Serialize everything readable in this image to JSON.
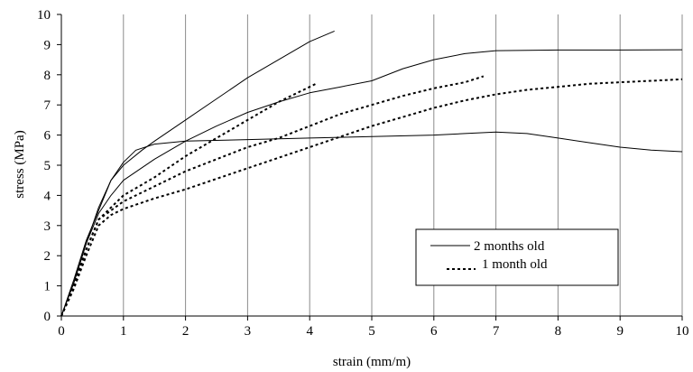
{
  "chart_data": {
    "type": "line",
    "title": "",
    "xlabel": "strain (mm/m)",
    "ylabel": "stress (MPa)",
    "xlim": [
      0,
      10
    ],
    "ylim": [
      0,
      10
    ],
    "xticks": [
      "0",
      "1",
      "2",
      "3",
      "4",
      "5",
      "6",
      "7",
      "8",
      "9",
      "10"
    ],
    "yticks": [
      "0",
      "1",
      "2",
      "3",
      "4",
      "5",
      "6",
      "7",
      "8",
      "9",
      "10"
    ],
    "grid": "vertical",
    "legend_position": "right",
    "legend": [
      {
        "label": "2 months old",
        "style": "solid"
      },
      {
        "label": "1 month old",
        "style": "dotted"
      }
    ],
    "series": [
      {
        "group": "2 months old",
        "style": "solid",
        "points": [
          [
            0,
            0
          ],
          [
            0.2,
            1.2
          ],
          [
            0.4,
            2.5
          ],
          [
            0.6,
            3.5
          ],
          [
            0.8,
            4.5
          ],
          [
            1.0,
            5.1
          ],
          [
            1.2,
            5.5
          ],
          [
            1.5,
            5.7
          ],
          [
            2,
            5.8
          ],
          [
            3,
            5.85
          ],
          [
            4,
            5.9
          ],
          [
            5,
            5.95
          ],
          [
            6,
            6.0
          ],
          [
            6.5,
            6.05
          ],
          [
            7,
            6.1
          ],
          [
            7.5,
            6.05
          ],
          [
            8,
            5.9
          ],
          [
            8.5,
            5.75
          ],
          [
            9,
            5.6
          ],
          [
            9.5,
            5.5
          ],
          [
            10,
            5.45
          ]
        ]
      },
      {
        "group": "2 months old",
        "style": "solid",
        "points": [
          [
            0,
            0
          ],
          [
            0.2,
            1.1
          ],
          [
            0.4,
            2.4
          ],
          [
            0.6,
            3.4
          ],
          [
            0.8,
            4.0
          ],
          [
            1.0,
            4.5
          ],
          [
            1.5,
            5.2
          ],
          [
            2,
            5.8
          ],
          [
            2.5,
            6.3
          ],
          [
            3,
            6.75
          ],
          [
            3.5,
            7.1
          ],
          [
            4,
            7.4
          ],
          [
            4.5,
            7.6
          ],
          [
            5,
            7.8
          ],
          [
            5.5,
            8.2
          ],
          [
            6,
            8.5
          ],
          [
            6.5,
            8.7
          ],
          [
            7,
            8.8
          ],
          [
            8,
            8.82
          ],
          [
            9,
            8.82
          ],
          [
            10,
            8.83
          ]
        ]
      },
      {
        "group": "2 months old",
        "style": "solid",
        "points": [
          [
            0,
            0
          ],
          [
            0.2,
            1.1
          ],
          [
            0.4,
            2.4
          ],
          [
            0.6,
            3.6
          ],
          [
            0.8,
            4.5
          ],
          [
            1.0,
            5.0
          ],
          [
            1.3,
            5.5
          ],
          [
            1.5,
            5.8
          ],
          [
            2,
            6.5
          ],
          [
            2.5,
            7.2
          ],
          [
            3,
            7.9
          ],
          [
            3.5,
            8.5
          ],
          [
            4,
            9.1
          ],
          [
            4.4,
            9.45
          ]
        ]
      },
      {
        "group": "1 month old",
        "style": "dotted",
        "points": [
          [
            0,
            0
          ],
          [
            0.2,
            1.0
          ],
          [
            0.4,
            2.2
          ],
          [
            0.6,
            3.2
          ],
          [
            0.8,
            3.6
          ],
          [
            1.0,
            4.0
          ],
          [
            1.5,
            4.6
          ],
          [
            2,
            5.3
          ],
          [
            2.5,
            5.9
          ],
          [
            3,
            6.5
          ],
          [
            3.5,
            7.1
          ],
          [
            4,
            7.6
          ],
          [
            4.1,
            7.7
          ]
        ]
      },
      {
        "group": "1 month old",
        "style": "dotted",
        "points": [
          [
            0,
            0
          ],
          [
            0.2,
            1.0
          ],
          [
            0.4,
            2.2
          ],
          [
            0.6,
            3.2
          ],
          [
            0.8,
            3.5
          ],
          [
            1.0,
            3.8
          ],
          [
            1.5,
            4.3
          ],
          [
            2,
            4.8
          ],
          [
            2.5,
            5.2
          ],
          [
            3,
            5.6
          ],
          [
            3.5,
            5.9
          ],
          [
            4,
            6.3
          ],
          [
            4.5,
            6.7
          ],
          [
            5,
            7.0
          ],
          [
            5.5,
            7.3
          ],
          [
            6,
            7.55
          ],
          [
            6.5,
            7.75
          ],
          [
            6.8,
            7.95
          ]
        ]
      },
      {
        "group": "1 month old",
        "style": "dotted",
        "points": [
          [
            0,
            0
          ],
          [
            0.2,
            0.9
          ],
          [
            0.4,
            2.0
          ],
          [
            0.6,
            3.0
          ],
          [
            0.8,
            3.35
          ],
          [
            1.0,
            3.55
          ],
          [
            1.5,
            3.9
          ],
          [
            2,
            4.2
          ],
          [
            2.5,
            4.55
          ],
          [
            3,
            4.9
          ],
          [
            3.5,
            5.25
          ],
          [
            4,
            5.6
          ],
          [
            4.5,
            5.95
          ],
          [
            5,
            6.3
          ],
          [
            5.5,
            6.6
          ],
          [
            6,
            6.9
          ],
          [
            6.5,
            7.15
          ],
          [
            7,
            7.35
          ],
          [
            7.5,
            7.5
          ],
          [
            8,
            7.6
          ],
          [
            8.5,
            7.7
          ],
          [
            9,
            7.75
          ],
          [
            9.5,
            7.8
          ],
          [
            10,
            7.85
          ]
        ]
      }
    ]
  }
}
